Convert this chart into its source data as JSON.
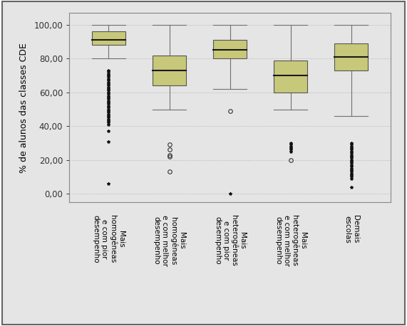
{
  "ylabel": "% de alunos das classes CDE",
  "ylim": [
    -5,
    107
  ],
  "yticks": [
    0,
    20,
    40,
    60,
    80,
    100
  ],
  "ytick_labels": [
    "0,00",
    "20,00",
    "40,00",
    "60,00",
    "80,00",
    "100,00"
  ],
  "box_facecolor": "#c8c87a",
  "box_edgecolor": "#555555",
  "median_color": "#1a1a1a",
  "whisker_color": "#707070",
  "cap_color": "#707070",
  "background_color": "#e5e5e5",
  "border_color": "#888888",
  "categories": [
    "Mais\nhomogêneas\ne com pior\ndesempenho",
    "Mais\nhomogêneas\ne com melhor\ndesempenho",
    "Mais\nheterogêneas\ne com pior\ndesempenho",
    "Mais\nheterogêneas\ne com melhor\ndesempenho",
    "Demais\nescolas"
  ],
  "boxes": [
    {
      "q1": 88,
      "median": 91,
      "q3": 96,
      "whisker_low": 80,
      "whisker_high": 100,
      "outliers_circle": [],
      "outliers_star": [
        6,
        31,
        37,
        41,
        42,
        43,
        44,
        45,
        46,
        47,
        48,
        49,
        50,
        51,
        52,
        53,
        54,
        55,
        56,
        57,
        58,
        59,
        60,
        61,
        62,
        63,
        64,
        65,
        66,
        67,
        68,
        69,
        70,
        71,
        72,
        73
      ]
    },
    {
      "q1": 64,
      "median": 73,
      "q3": 82,
      "whisker_low": 50,
      "whisker_high": 100,
      "outliers_circle": [
        13,
        22,
        23,
        26,
        29
      ],
      "outliers_star": []
    },
    {
      "q1": 80,
      "median": 85,
      "q3": 91,
      "whisker_low": 62,
      "whisker_high": 100,
      "outliers_circle": [
        49
      ],
      "outliers_star": [
        0
      ]
    },
    {
      "q1": 60,
      "median": 70,
      "q3": 79,
      "whisker_low": 50,
      "whisker_high": 100,
      "outliers_circle": [
        20
      ],
      "outliers_star": [
        25,
        26,
        27,
        28,
        29,
        30
      ]
    },
    {
      "q1": 73,
      "median": 81,
      "q3": 89,
      "whisker_low": 46,
      "whisker_high": 100,
      "outliers_circle": [],
      "outliers_star": [
        4,
        9,
        10,
        11,
        12,
        13,
        14,
        15,
        16,
        17,
        18,
        19,
        20,
        21,
        22,
        23,
        24,
        25,
        26,
        27,
        28,
        29,
        30
      ]
    }
  ]
}
